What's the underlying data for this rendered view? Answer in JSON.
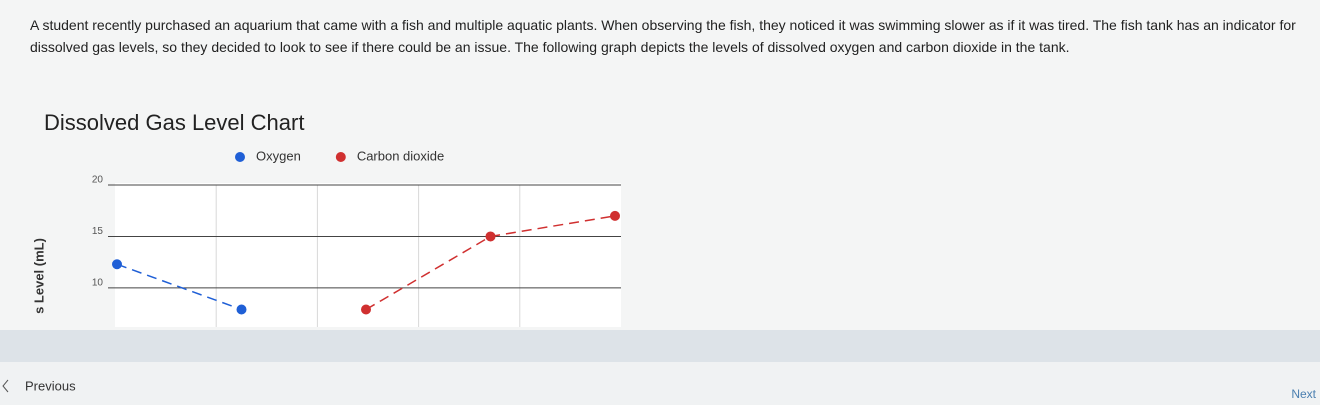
{
  "passage": "A student recently purchased an aquarium that came with a fish and multiple aquatic plants. When observing the fish, they noticed it was swimming slower as if it was tired. The fish tank has an indicator for dissolved gas levels, so they decided to look to see if there could be an issue. The following graph depicts the levels of dissolved oxygen and carbon dioxide in the tank.",
  "chart": {
    "type": "line",
    "title": "Dissolved Gas Level Chart",
    "y_label": "s Level (mL)",
    "categories": [
      null,
      null,
      null,
      null,
      null
    ],
    "series": [
      {
        "name": "Oxygen",
        "color": "#1f5fd6",
        "values": [
          12.3,
          7.9,
          null,
          null,
          null
        ]
      },
      {
        "name": "Carbon dioxide",
        "color": "#d03030",
        "values": [
          null,
          null,
          7.9,
          15,
          17
        ]
      }
    ],
    "ylim": [
      6.2,
      20
    ],
    "yticks": [
      10,
      15,
      20
    ],
    "grid": true
  },
  "nav": {
    "previous": "Previous",
    "next": "Next"
  }
}
